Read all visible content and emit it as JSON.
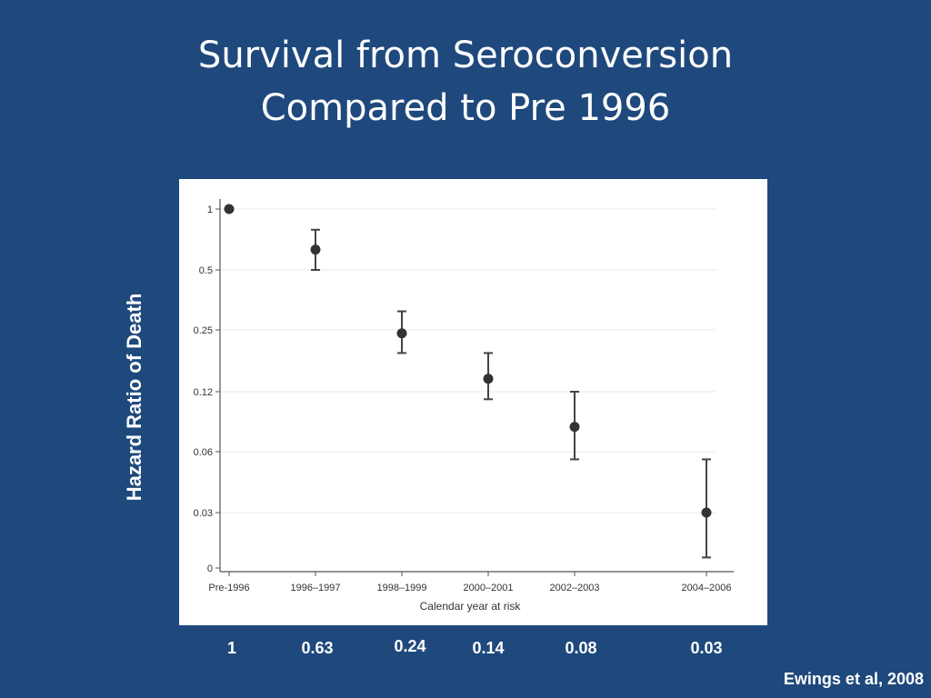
{
  "slide": {
    "title_line1": "Survival from Seroconversion",
    "title_line2": "Compared to Pre 1996",
    "y_axis_title": "Hazard Ratio of Death",
    "citation": "Ewings et al,  2008",
    "colors": {
      "background": "#1f497d",
      "text": "#ffffff",
      "marker": "#333333"
    }
  },
  "chart_data": {
    "type": "scatter",
    "xlabel": "Calendar year at risk",
    "categories": [
      "Pre-1996",
      "1996–1997",
      "1998–1999",
      "2000–2001",
      "2002–2003",
      "2004–2006"
    ],
    "y_ticks": [
      "1",
      "0.5",
      "0.25",
      "0.12",
      "0.06",
      "0.03",
      "0"
    ],
    "y_scale": "log",
    "grid": true,
    "series": [
      {
        "estimates": [
          1,
          0.63,
          0.24,
          0.14,
          0.08,
          0.03
        ],
        "ci_lower": [
          1,
          0.5,
          0.19,
          0.11,
          0.055,
          0.018
        ],
        "ci_upper": [
          1,
          0.79,
          0.31,
          0.19,
          0.12,
          0.055
        ]
      }
    ]
  },
  "value_labels": [
    "1",
    "0.63",
    "0.24",
    "0.14",
    "0.08",
    "0.03"
  ]
}
